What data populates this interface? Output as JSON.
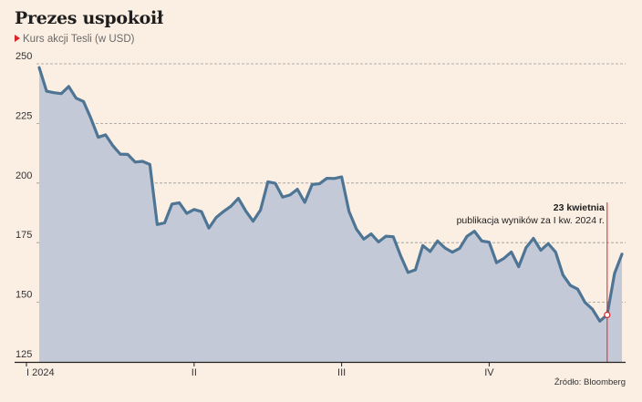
{
  "header": {
    "title": "Prezes uspokoił",
    "subtitle": "Kurs akcji Tesli (w USD)"
  },
  "source": "Źródło: Bloomberg",
  "colors": {
    "background": "#fbeee3",
    "line": "#4e7594",
    "area": "#c4c9d8",
    "marker": "#d8242b",
    "grid": "#9a9a9a"
  },
  "chart_data": {
    "type": "area",
    "title": "Prezes uspokoił",
    "subtitle": "Kurs akcji Tesli (w USD)",
    "xlabel": "",
    "ylabel": "",
    "ylim": [
      125,
      250
    ],
    "yticks": [
      125,
      150,
      175,
      200,
      225,
      250
    ],
    "grid": true,
    "x_ticks": [
      {
        "label": "I 2024",
        "index": 0
      },
      {
        "label": "II",
        "index": 21
      },
      {
        "label": "III",
        "index": 41
      },
      {
        "label": "IV",
        "index": 61
      }
    ],
    "series": [
      {
        "values": [
          248.4,
          238.5,
          237.9,
          237.5,
          240.5,
          235.6,
          234.2,
          227.2,
          219.2,
          220.2,
          215.6,
          212.1,
          212.0,
          208.8,
          209.1,
          207.8,
          182.6,
          183.3,
          191.2,
          191.7,
          187.3,
          188.9,
          188.0,
          181.1,
          185.6,
          188.1,
          190.3,
          193.6,
          188.3,
          184.0,
          188.7,
          200.5,
          199.9,
          194.1,
          195.0,
          197.4,
          191.9,
          199.4,
          199.7,
          202.0,
          201.9,
          202.6,
          188.1,
          180.7,
          176.5,
          178.7,
          175.3,
          177.7,
          177.5,
          169.5,
          162.5,
          163.6,
          173.8,
          171.3,
          175.7,
          172.8,
          171.0,
          172.6,
          177.7,
          179.8,
          175.7,
          175.2,
          166.6,
          168.4,
          171.1,
          164.9,
          172.9,
          176.8,
          171.8,
          174.6,
          171.1,
          161.5,
          157.1,
          155.5,
          149.9,
          147.1,
          142.1,
          144.7,
          162.1,
          170.2
        ]
      }
    ],
    "annotation": {
      "index": 77,
      "title": "23 kwietnia",
      "text": "publikacja wyników za I kw. 2024 r."
    }
  }
}
